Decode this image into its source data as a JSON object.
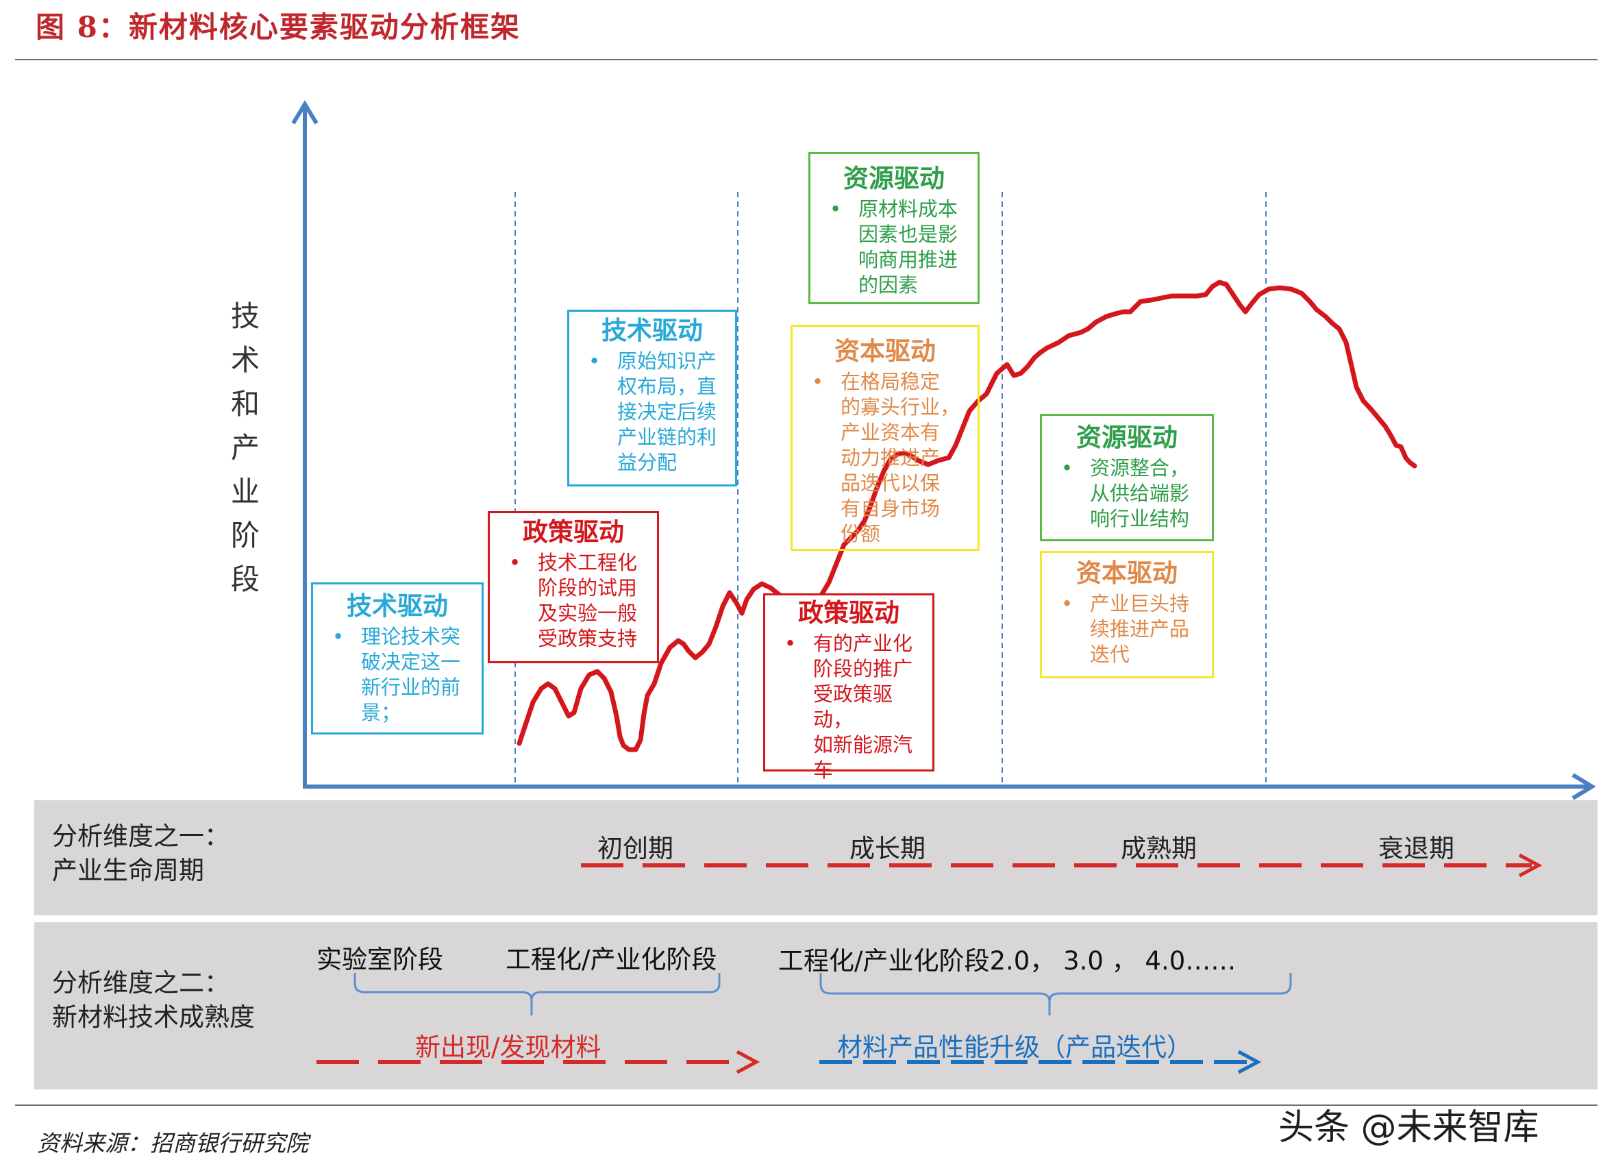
{
  "title": "图 8：新材料核心要素驱动分析框架",
  "y_axis_label": [
    "技",
    "术",
    "和",
    "产",
    "业",
    "阶",
    "段"
  ],
  "boxes": {
    "tech1": {
      "head": "技术驱动",
      "text": "理论技术突破决定这一新行业的前景；",
      "lines": [
        "理论技术突",
        "破决定这一",
        "新行业的前",
        "景；"
      ]
    },
    "policy1": {
      "head": "政策驱动",
      "text": "技术工程化阶段的试用及实验一般受政策支持",
      "lines": [
        "技术工程化",
        "阶段的试用",
        "及实验一般",
        "受政策支持"
      ]
    },
    "tech2": {
      "head": "技术驱动",
      "text": "原始知识产权布局，直接决定后续产业链的利益分配",
      "lines": [
        "原始知识产",
        "权布局，直",
        "接决定后续",
        "产业链的利",
        "益分配"
      ]
    },
    "resource1": {
      "head": "资源驱动",
      "text": "原材料成本因素也是影响商用推进的因素",
      "lines": [
        "原材料成本",
        "因素也是影",
        "响商用推进",
        "的因素"
      ]
    },
    "capital1": {
      "head": "资本驱动",
      "text": "在格局稳定的寡头行业，产业资本有动力推进产品迭代以保有自身市场份额",
      "lines": [
        "在格局稳定",
        "的寡头行业，",
        "产业资本有",
        "动力推进产",
        "品迭代以保",
        "有自身市场",
        "份额"
      ]
    },
    "policy2": {
      "head": "政策驱动",
      "text": "有的产业化阶段的推广受政策驱动，如新能源汽车",
      "lines": [
        "有的产业化",
        "阶段的推广",
        "受政策驱动，",
        "如新能源汽",
        "车"
      ]
    },
    "resource2": {
      "head": "资源驱动",
      "text": "资源整合，从供给端影响行业结构",
      "lines": [
        "资源整合，",
        "从供给端影",
        "响行业结构"
      ]
    },
    "capital2": {
      "head": "资本驱动",
      "text": "产业巨头持续推进产品迭代",
      "lines": [
        "产业巨头持",
        "续推进产品",
        "迭代"
      ]
    }
  },
  "band1": {
    "label_line1": "分析维度之一：",
    "label_line2": "产业生命周期",
    "phases": [
      "初创期",
      "成长期",
      "成熟期",
      "衰退期"
    ]
  },
  "band2": {
    "label_line1": "分析维度之二：",
    "label_line2": "新材料技术成熟度",
    "stage_lab": "实验室阶段",
    "stage_eng": "工程化/产业化阶段",
    "stage_eng_iter": "工程化/产业化阶段2.0， 3.0 ， 4.0……",
    "arrow_new": "新出现/发现材料",
    "arrow_upgrade": "材料产品性能升级（产品迭代）"
  },
  "source": "资料来源：招商银行研究院",
  "watermark": "头条 @未来智库",
  "colors": {
    "title": "#c0272d",
    "axis": "#4a7fc1",
    "curve": "#d4171c",
    "tech": "#27a8d8",
    "policy": "#d4171c",
    "resource": "#5cb948",
    "capital": "#f4e62a",
    "capital_text": "#e08a4a",
    "resource_text": "#2e9e4a",
    "band": "#d8d6d6",
    "blue_arrow": "#1a70bf"
  }
}
